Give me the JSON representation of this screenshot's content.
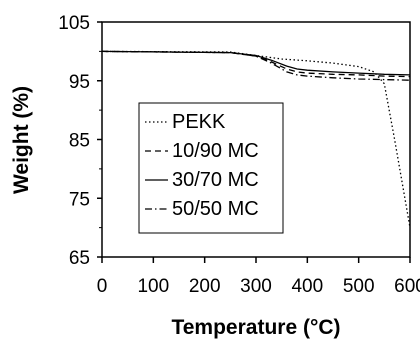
{
  "chart_data": {
    "type": "line",
    "xlabel": "Temperature (°C)",
    "ylabel": "Weight (%)",
    "xlim": [
      0,
      600
    ],
    "ylim": [
      65,
      105
    ],
    "xticks": [
      "0",
      "100",
      "200",
      "300",
      "400",
      "500",
      "600"
    ],
    "yticks": [
      "65",
      "75",
      "85",
      "95",
      "105"
    ],
    "grid": false,
    "legend_position": "center-left",
    "series": [
      {
        "name": "PEKK",
        "dash": "dotted",
        "x": [
          0,
          250,
          300,
          350,
          400,
          450,
          500,
          530,
          550,
          570,
          590,
          600
        ],
        "y": [
          100,
          99.9,
          99.3,
          98.7,
          98.4,
          98.0,
          97.4,
          96.5,
          94.5,
          85.0,
          75.0,
          70.0
        ]
      },
      {
        "name": "10/90 MC",
        "dash": "dashed",
        "x": [
          0,
          250,
          300,
          330,
          360,
          380,
          400,
          450,
          500,
          550,
          600
        ],
        "y": [
          100,
          99.8,
          99.2,
          98.2,
          97.0,
          96.5,
          96.3,
          96.1,
          96.0,
          95.8,
          95.7
        ]
      },
      {
        "name": "30/70 MC",
        "dash": "solid",
        "x": [
          0,
          250,
          300,
          330,
          360,
          380,
          400,
          450,
          500,
          550,
          600
        ],
        "y": [
          100,
          99.8,
          99.3,
          98.5,
          97.5,
          97.0,
          96.8,
          96.5,
          96.3,
          96.1,
          96.0
        ]
      },
      {
        "name": "50/50 MC",
        "dash": "dashdot",
        "x": [
          0,
          250,
          300,
          330,
          360,
          380,
          400,
          450,
          500,
          550,
          600
        ],
        "y": [
          100,
          99.8,
          99.2,
          98.0,
          96.5,
          96.0,
          95.8,
          95.5,
          95.3,
          95.2,
          95.1
        ]
      }
    ]
  }
}
